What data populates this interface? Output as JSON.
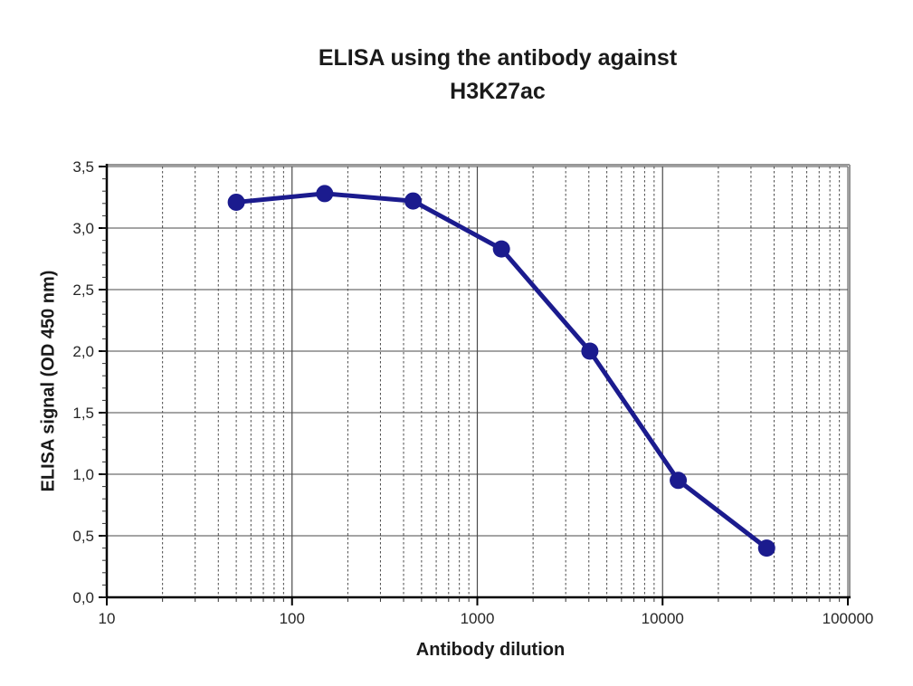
{
  "chart": {
    "title_line1": "ELISA using the antibody against",
    "title_line2": "H3K27ac",
    "xlabel": "Antibody dilution",
    "ylabel": "ELISA signal (OD 450 nm)"
  },
  "chart_data": {
    "type": "line",
    "title": "ELISA using the antibody against H3K27ac",
    "xlabel": "Antibody dilution",
    "ylabel": "ELISA signal (OD 450 nm)",
    "x_scale": "log",
    "xlim": [
      10,
      100000
    ],
    "ylim": [
      0,
      3.5
    ],
    "y_major_step": 0.5,
    "y_minor_step": 0.1,
    "x": [
      50,
      150,
      450,
      1350,
      4050,
      12150,
      36450
    ],
    "y": [
      3.21,
      3.28,
      3.22,
      2.83,
      2.0,
      0.95,
      0.4
    ],
    "series_name": "ELISA signal (OD 450 nm)",
    "x_tick_labels": [
      "10",
      "100",
      "1000",
      "10000",
      "100000"
    ],
    "y_tick_labels": [
      "0,0",
      "0,5",
      "1,0",
      "1,5",
      "2,0",
      "2,5",
      "3,0",
      "3,5"
    ],
    "decimal_separator": ",",
    "grid": true,
    "legend": false,
    "line_color": "#1b1b8e",
    "marker": "circle",
    "marker_color": "#1b1b8e",
    "grid_color": "#4a4a4a",
    "axis_color": "#000000",
    "border_color": "#969696",
    "background": "#ffffff"
  }
}
